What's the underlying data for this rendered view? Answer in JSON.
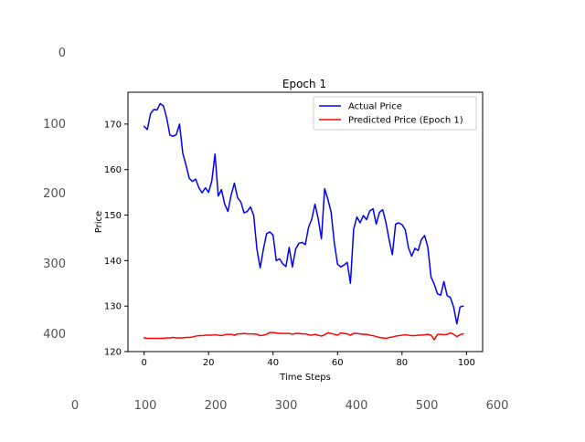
{
  "outer_axes": {
    "y_ticks": [
      "0",
      "100",
      "200",
      "300",
      "400"
    ],
    "x_ticks": [
      "0",
      "100",
      "200",
      "300",
      "400",
      "500",
      "600"
    ]
  },
  "chart_data": {
    "type": "line",
    "title": "Epoch 1",
    "xlabel": "Time Steps",
    "ylabel": "Price",
    "xlim": [
      -5,
      105
    ],
    "ylim": [
      120,
      177
    ],
    "x_ticks": [
      0,
      20,
      40,
      60,
      80,
      100
    ],
    "y_ticks": [
      120,
      130,
      140,
      150,
      160,
      170
    ],
    "grid": false,
    "legend_position": "top-right",
    "series": [
      {
        "name": "Actual Price",
        "color": "#0000ff",
        "x": [
          0,
          1,
          2,
          3,
          4,
          5,
          6,
          7,
          8,
          9,
          10,
          11,
          12,
          13,
          14,
          15,
          16,
          17,
          18,
          19,
          20,
          21,
          22,
          23,
          24,
          25,
          26,
          27,
          28,
          29,
          30,
          31,
          32,
          33,
          34,
          35,
          36,
          37,
          38,
          39,
          40,
          41,
          42,
          43,
          44,
          45,
          46,
          47,
          48,
          49,
          50,
          51,
          52,
          53,
          54,
          55,
          56,
          57,
          58,
          59,
          60,
          61,
          62,
          63,
          64,
          65,
          66,
          67,
          68,
          69,
          70,
          71,
          72,
          73,
          74,
          75,
          76,
          77,
          78,
          79,
          80,
          81,
          82,
          83,
          84,
          85,
          86,
          87,
          88,
          89,
          90,
          91,
          92,
          93,
          94,
          95,
          96,
          97,
          98,
          99
        ],
        "values": [
          169.5,
          168.8,
          172.3,
          173.2,
          173.1,
          174.5,
          174.0,
          171.4,
          167.6,
          167.3,
          167.7,
          170.0,
          163.6,
          161.0,
          158.1,
          157.4,
          157.9,
          156.0,
          154.9,
          156.0,
          155.0,
          157.5,
          163.4,
          154.2,
          155.6,
          152.4,
          150.8,
          154.4,
          157.0,
          153.8,
          152.9,
          150.5,
          150.8,
          151.8,
          149.9,
          142.5,
          138.4,
          142.5,
          145.9,
          146.3,
          145.6,
          140.0,
          140.4,
          139.3,
          138.7,
          142.9,
          138.6,
          142.5,
          143.8,
          144.0,
          143.5,
          147.3,
          149.1,
          152.4,
          149.2,
          144.8,
          155.8,
          153.5,
          150.7,
          143.9,
          139.2,
          138.6,
          139.0,
          139.6,
          135.0,
          146.9,
          149.6,
          148.3,
          149.9,
          149.0,
          150.9,
          151.4,
          148.0,
          150.6,
          151.2,
          148.4,
          144.6,
          141.3,
          148.0,
          148.3,
          147.9,
          146.8,
          142.8,
          141.0,
          142.7,
          142.2,
          144.6,
          145.5,
          143.0,
          136.4,
          134.8,
          132.7,
          132.4,
          135.4,
          132.3,
          131.9,
          129.8,
          126.1,
          129.8,
          130.0
        ]
      },
      {
        "name": "Predicted Price (Epoch 1)",
        "color": "#ff0000",
        "x": [
          0,
          1,
          2,
          3,
          4,
          5,
          6,
          7,
          8,
          9,
          10,
          11,
          12,
          13,
          14,
          15,
          16,
          17,
          18,
          19,
          20,
          21,
          22,
          23,
          24,
          25,
          26,
          27,
          28,
          29,
          30,
          31,
          32,
          33,
          34,
          35,
          36,
          37,
          38,
          39,
          40,
          41,
          42,
          43,
          44,
          45,
          46,
          47,
          48,
          49,
          50,
          51,
          52,
          53,
          54,
          55,
          56,
          57,
          58,
          59,
          60,
          61,
          62,
          63,
          64,
          65,
          66,
          67,
          68,
          69,
          70,
          71,
          72,
          73,
          74,
          75,
          76,
          77,
          78,
          79,
          80,
          81,
          82,
          83,
          84,
          85,
          86,
          87,
          88,
          89,
          90,
          91,
          92,
          93,
          94,
          95,
          96,
          97,
          98,
          99
        ],
        "values": [
          123.0,
          122.9,
          122.9,
          122.9,
          122.9,
          122.9,
          122.9,
          123.0,
          123.0,
          123.1,
          123.0,
          123.0,
          123.0,
          123.1,
          123.1,
          123.2,
          123.4,
          123.5,
          123.5,
          123.6,
          123.6,
          123.6,
          123.7,
          123.6,
          123.5,
          123.7,
          123.8,
          123.8,
          123.6,
          123.9,
          123.9,
          124.0,
          123.9,
          123.9,
          123.9,
          123.8,
          123.5,
          123.6,
          123.8,
          124.2,
          124.2,
          124.1,
          124.0,
          124.0,
          124.0,
          124.0,
          123.8,
          124.0,
          124.0,
          123.9,
          123.9,
          123.7,
          123.6,
          123.8,
          123.6,
          123.4,
          123.7,
          124.1,
          124.0,
          123.8,
          123.6,
          124.1,
          124.0,
          123.9,
          123.6,
          124.0,
          124.0,
          123.9,
          123.8,
          123.8,
          123.6,
          123.5,
          123.3,
          123.1,
          123.0,
          122.9,
          123.1,
          123.2,
          123.4,
          123.5,
          123.6,
          123.7,
          123.6,
          123.5,
          123.5,
          123.6,
          123.6,
          123.7,
          123.8,
          123.6,
          122.6,
          123.8,
          123.8,
          123.7,
          123.8,
          124.1,
          123.8,
          123.3,
          123.7,
          123.9
        ]
      }
    ]
  }
}
